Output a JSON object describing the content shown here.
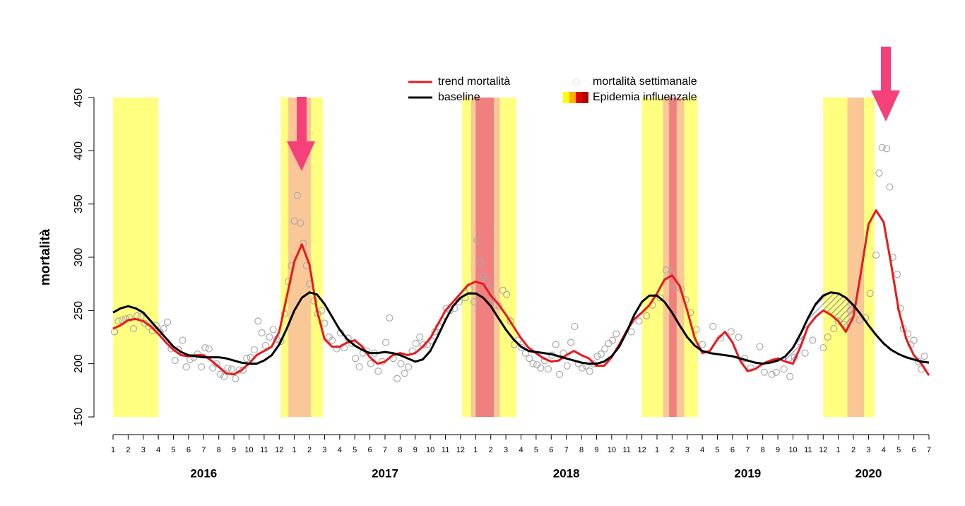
{
  "chart_data": {
    "type": "line",
    "ylabel": "mortalità",
    "ylim": [
      150,
      450
    ],
    "yticks": [
      150,
      200,
      250,
      300,
      350,
      400,
      450
    ],
    "xlim": [
      0,
      54
    ],
    "xticks": [
      {
        "value": 0,
        "label": "1"
      },
      {
        "value": 1,
        "label": "2"
      },
      {
        "value": 2,
        "label": "3"
      },
      {
        "value": 3,
        "label": "4"
      },
      {
        "value": 4,
        "label": "5"
      },
      {
        "value": 5,
        "label": "6"
      },
      {
        "value": 6,
        "label": "7"
      },
      {
        "value": 7,
        "label": "8"
      },
      {
        "value": 8,
        "label": "9"
      },
      {
        "value": 9,
        "label": "10"
      },
      {
        "value": 10,
        "label": "11"
      },
      {
        "value": 11,
        "label": "12"
      },
      {
        "value": 12,
        "label": "1"
      },
      {
        "value": 13,
        "label": "2"
      },
      {
        "value": 14,
        "label": "3"
      },
      {
        "value": 15,
        "label": "4"
      },
      {
        "value": 16,
        "label": "5"
      },
      {
        "value": 17,
        "label": "6"
      },
      {
        "value": 18,
        "label": "7"
      },
      {
        "value": 19,
        "label": "8"
      },
      {
        "value": 20,
        "label": "9"
      },
      {
        "value": 21,
        "label": "10"
      },
      {
        "value": 22,
        "label": "11"
      },
      {
        "value": 23,
        "label": "12"
      },
      {
        "value": 24,
        "label": "1"
      },
      {
        "value": 25,
        "label": "2"
      },
      {
        "value": 26,
        "label": "3"
      },
      {
        "value": 27,
        "label": "4"
      },
      {
        "value": 28,
        "label": "5"
      },
      {
        "value": 29,
        "label": "6"
      },
      {
        "value": 30,
        "label": "7"
      },
      {
        "value": 31,
        "label": "8"
      },
      {
        "value": 32,
        "label": "9"
      },
      {
        "value": 33,
        "label": "10"
      },
      {
        "value": 34,
        "label": "11"
      },
      {
        "value": 35,
        "label": "12"
      },
      {
        "value": 36,
        "label": "1"
      },
      {
        "value": 37,
        "label": "2"
      },
      {
        "value": 38,
        "label": "3"
      },
      {
        "value": 39,
        "label": "4"
      },
      {
        "value": 40,
        "label": "5"
      },
      {
        "value": 41,
        "label": "6"
      },
      {
        "value": 42,
        "label": "7"
      },
      {
        "value": 43,
        "label": "8"
      },
      {
        "value": 44,
        "label": "9"
      },
      {
        "value": 45,
        "label": "10"
      },
      {
        "value": 46,
        "label": "11"
      },
      {
        "value": 47,
        "label": "12"
      },
      {
        "value": 48,
        "label": "1"
      },
      {
        "value": 49,
        "label": "2"
      },
      {
        "value": 50,
        "label": "3"
      },
      {
        "value": 51,
        "label": "4"
      },
      {
        "value": 52,
        "label": "5"
      },
      {
        "value": 53,
        "label": "6"
      },
      {
        "value": 54,
        "label": "7"
      }
    ],
    "year_labels": [
      {
        "value": 6,
        "label": "2016"
      },
      {
        "value": 18,
        "label": "2017"
      },
      {
        "value": 30,
        "label": "2018"
      },
      {
        "value": 42,
        "label": "2019"
      },
      {
        "value": 50,
        "label": "2020"
      }
    ],
    "x": [
      0,
      0.5,
      1,
      1.5,
      2,
      2.5,
      3,
      3.5,
      4,
      4.5,
      5,
      5.5,
      6,
      6.5,
      7,
      7.5,
      8,
      8.5,
      9,
      9.5,
      10,
      10.5,
      11,
      11.5,
      12,
      12.5,
      13,
      13.5,
      14,
      14.5,
      15,
      15.5,
      16,
      16.5,
      17,
      17.5,
      18,
      18.5,
      19,
      19.5,
      20,
      20.5,
      21,
      21.5,
      22,
      22.5,
      23,
      23.5,
      24,
      24.5,
      25,
      25.5,
      26,
      26.5,
      27,
      27.5,
      28,
      28.5,
      29,
      29.5,
      30,
      30.5,
      31,
      31.5,
      32,
      32.5,
      33,
      33.5,
      34,
      34.5,
      35,
      35.5,
      36,
      36.5,
      37,
      37.5,
      38,
      38.5,
      39,
      39.5,
      40,
      40.5,
      41,
      41.5,
      42,
      42.5,
      43,
      43.5,
      44,
      44.5,
      45,
      45.5,
      46,
      46.5,
      47,
      47.5,
      48,
      48.5,
      49,
      49.5,
      50,
      50.5,
      51,
      51.5,
      52,
      52.5,
      53,
      53.5,
      54
    ],
    "series": [
      {
        "name": "trend mortalità",
        "color": "#e8191c",
        "values": [
          233,
          236,
          241,
          242,
          240,
          235,
          228,
          220,
          213,
          208,
          207,
          208,
          208,
          203,
          197,
          191,
          190,
          194,
          200,
          208,
          212,
          216,
          230,
          263,
          296,
          312,
          293,
          250,
          223,
          216,
          216,
          220,
          222,
          216,
          206,
          200,
          202,
          208,
          210,
          208,
          210,
          216,
          224,
          237,
          250,
          258,
          266,
          274,
          277,
          275,
          264,
          256,
          246,
          235,
          224,
          215,
          210,
          205,
          202,
          203,
          208,
          212,
          208,
          205,
          198,
          198,
          206,
          218,
          231,
          242,
          248,
          255,
          266,
          279,
          283,
          273,
          250,
          224,
          210,
          212,
          223,
          230,
          220,
          203,
          193,
          195,
          200,
          203,
          205,
          202,
          200,
          216,
          235,
          244,
          250,
          246,
          240,
          230,
          244,
          286,
          331,
          344,
          333,
          293,
          250,
          223,
          208,
          200,
          189
        ]
      },
      {
        "name": "baseline",
        "color": "#000000",
        "values": [
          248,
          252,
          254,
          252,
          248,
          240,
          232,
          224,
          216,
          211,
          208,
          207,
          206,
          206,
          206,
          205,
          203,
          201,
          200,
          200,
          203,
          208,
          218,
          233,
          250,
          262,
          267,
          265,
          256,
          244,
          232,
          223,
          217,
          213,
          210,
          210,
          211,
          210,
          208,
          205,
          202,
          204,
          212,
          226,
          241,
          254,
          262,
          266,
          266,
          262,
          254,
          243,
          232,
          223,
          216,
          212,
          211,
          210,
          209,
          207,
          205,
          203,
          201,
          200,
          200,
          202,
          207,
          216,
          230,
          246,
          258,
          264,
          264,
          258,
          248,
          236,
          225,
          217,
          212,
          210,
          209,
          208,
          207,
          205,
          203,
          201,
          200,
          201,
          203,
          207,
          215,
          228,
          243,
          256,
          264,
          267,
          266,
          262,
          255,
          246,
          236,
          227,
          219,
          213,
          209,
          206,
          204,
          202,
          201
        ]
      },
      {
        "name": "mortalità settimanale",
        "type": "scatter",
        "color": "#aaaaaa",
        "x": [
          0.1,
          0.35,
          0.6,
          0.85,
          1.1,
          1.35,
          1.6,
          1.85,
          2.1,
          2.35,
          2.6,
          2.85,
          3.1,
          3.35,
          3.6,
          3.85,
          4.1,
          4.35,
          4.6,
          4.85,
          5.1,
          5.35,
          5.6,
          5.85,
          6.1,
          6.35,
          6.6,
          6.85,
          7.1,
          7.35,
          7.6,
          7.85,
          8.1,
          8.35,
          8.6,
          8.85,
          9.1,
          9.35,
          9.6,
          9.85,
          10.1,
          10.35,
          10.6,
          10.85,
          11.1,
          11.35,
          11.6,
          11.8,
          12.0,
          12.2,
          12.4,
          12.6,
          12.8,
          13.0,
          13.3,
          13.55,
          13.8,
          14.0,
          14.3,
          14.5,
          14.8,
          15.05,
          15.3,
          15.55,
          15.8,
          16.05,
          16.3,
          16.55,
          16.8,
          17.05,
          17.3,
          17.55,
          17.8,
          18.05,
          18.3,
          18.55,
          18.8,
          19.05,
          19.3,
          19.55,
          19.8,
          20.05,
          20.3,
          20.55,
          20.8,
          21.05,
          21.3,
          21.55,
          21.8,
          22.05,
          22.3,
          22.6,
          22.9,
          23.3,
          23.6,
          23.9,
          24.1,
          24.3,
          24.5,
          24.7,
          24.9,
          25.1,
          25.3,
          25.55,
          25.8,
          26.05,
          26.3,
          26.55,
          26.8,
          27.05,
          27.3,
          27.55,
          27.8,
          28.05,
          28.3,
          28.55,
          28.8,
          29.05,
          29.3,
          29.55,
          29.8,
          30.05,
          30.3,
          30.55,
          30.8,
          31.05,
          31.3,
          31.55,
          31.8,
          32.05,
          32.3,
          32.55,
          32.8,
          33.05,
          33.3,
          34.3,
          34.8,
          35.3,
          35.7,
          36.2,
          36.6,
          36.9,
          37.3,
          37.6,
          37.9,
          38.2,
          38.6,
          39.0,
          39.7,
          40.2,
          40.9,
          41.4,
          41.8,
          42.2,
          42.8,
          43.1,
          43.6,
          43.9,
          44.4,
          44.8,
          45.1,
          45.4,
          45.8,
          46.3,
          47.0,
          47.3,
          47.7,
          48.0,
          48.4,
          48.8,
          49.4,
          49.8,
          50.1,
          50.5,
          50.7,
          50.9,
          51.2,
          51.4,
          51.6,
          51.9,
          52.1,
          52.3,
          52.6,
          52.8,
          53.0,
          53.3,
          53.5,
          53.7
        ],
        "values": [
          230,
          240,
          241,
          242,
          243,
          233,
          245,
          244,
          238,
          235,
          231,
          236,
          230,
          233,
          239,
          214,
          203,
          213,
          222,
          197,
          204,
          206,
          209,
          197,
          215,
          214,
          196,
          200,
          190,
          188,
          196,
          195,
          186,
          194,
          194,
          205,
          206,
          213,
          240,
          229,
          217,
          225,
          232,
          223,
          221,
          247,
          277,
          292,
          334,
          358,
          332,
          313,
          292,
          275,
          259,
          247,
          250,
          238,
          225,
          222,
          214,
          229,
          215,
          224,
          219,
          205,
          197,
          210,
          212,
          200,
          210,
          193,
          202,
          220,
          243,
          205,
          186,
          200,
          191,
          197,
          212,
          219,
          225,
          218,
          218,
          222,
          230,
          235,
          240,
          252,
          250,
          252,
          258,
          262,
          270,
          258,
          316,
          295,
          282,
          276,
          270,
          262,
          255,
          254,
          269,
          265,
          240,
          218,
          222,
          215,
          210,
          205,
          200,
          199,
          196,
          203,
          195,
          208,
          218,
          190,
          210,
          198,
          220,
          235,
          200,
          196,
          198,
          193,
          200,
          207,
          209,
          214,
          219,
          222,
          228,
          230,
          240,
          245,
          255,
          262,
          288,
          285,
          272,
          270,
          260,
          248,
          232,
          218,
          235,
          224,
          230,
          225,
          205,
          196,
          216,
          192,
          190,
          192,
          195,
          188,
          206,
          221,
          210,
          222,
          215,
          225,
          233,
          240,
          237,
          250,
          241,
          243,
          266,
          302,
          379,
          403,
          402,
          366,
          300,
          284,
          252,
          233,
          228,
          218,
          222,
          202,
          195,
          207
        ]
      }
    ],
    "epidemic": {
      "label": "Epidemia influenzale",
      "level_colors": [
        "#ffff80",
        "#f9c896",
        "#f08080"
      ],
      "legend_colors": [
        "#ffff00",
        "#ffb000",
        "#e60000",
        "#b00000"
      ],
      "periods": [
        {
          "start": 0,
          "end": 3.0,
          "level": 0
        },
        {
          "start": 11.1,
          "end": 13.9,
          "level": 0
        },
        {
          "start": 11.6,
          "end": 13.1,
          "level": 1
        },
        {
          "start": 23.1,
          "end": 26.7,
          "level": 0
        },
        {
          "start": 23.7,
          "end": 25.6,
          "level": 1
        },
        {
          "start": 24.0,
          "end": 25.2,
          "level": 2
        },
        {
          "start": 35.0,
          "end": 38.7,
          "level": 0
        },
        {
          "start": 36.4,
          "end": 37.8,
          "level": 1
        },
        {
          "start": 36.8,
          "end": 37.3,
          "level": 2
        },
        {
          "start": 47.0,
          "end": 50.4,
          "level": 0
        },
        {
          "start": 48.6,
          "end": 49.7,
          "level": 1
        }
      ]
    }
  }
}
